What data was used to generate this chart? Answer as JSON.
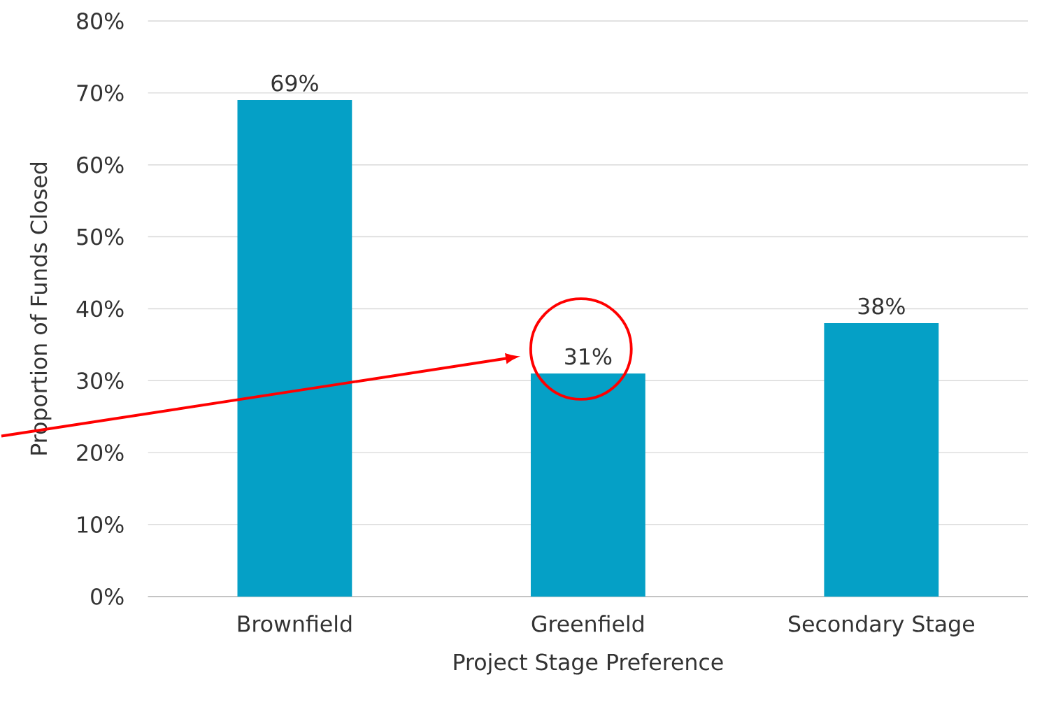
{
  "chart_data": {
    "type": "bar",
    "xlabel": "Project Stage Preference",
    "ylabel": "Proportion of Funds Closed",
    "categories": [
      "Brownfield",
      "Greenfield",
      "Secondary Stage"
    ],
    "values": [
      69,
      31,
      38
    ],
    "value_labels": [
      "69%",
      "31%",
      "38%"
    ],
    "color": "#05a0c6",
    "ylim": [
      0,
      80
    ],
    "yticks": [
      {
        "value": 0,
        "label": "0%"
      },
      {
        "value": 10,
        "label": "10%"
      },
      {
        "value": 20,
        "label": "20%"
      },
      {
        "value": 30,
        "label": "30%"
      },
      {
        "value": 40,
        "label": "40%"
      },
      {
        "value": 50,
        "label": "50%"
      },
      {
        "value": 60,
        "label": "60%"
      },
      {
        "value": 70,
        "label": "70%"
      },
      {
        "value": 80,
        "label": "80%"
      }
    ],
    "grid": "y"
  }
}
